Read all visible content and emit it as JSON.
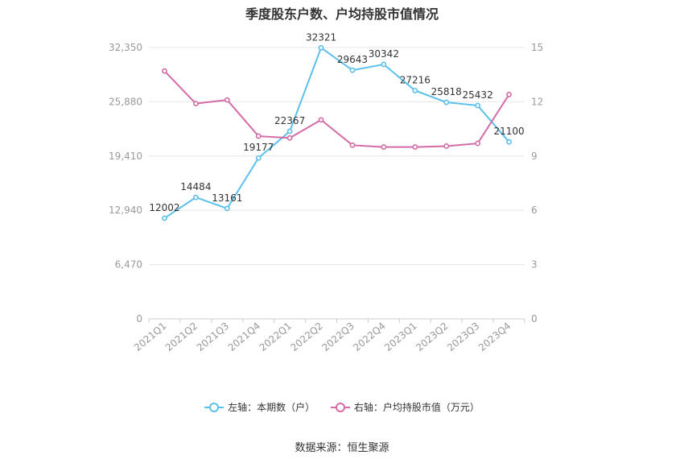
{
  "chart_data": {
    "type": "line",
    "title": "季度股东户数、户均持股市值情况",
    "categories": [
      "2021Q1",
      "2021Q2",
      "2021Q3",
      "2021Q4",
      "2022Q1",
      "2022Q2",
      "2022Q3",
      "2022Q4",
      "2023Q1",
      "2023Q2",
      "2023Q3",
      "2023Q4"
    ],
    "left_axis": {
      "ticks": [
        "0",
        "6,470",
        "12,940",
        "19,410",
        "25,880",
        "32,350"
      ],
      "ylim": [
        0,
        32350
      ]
    },
    "right_axis": {
      "ticks": [
        "0",
        "3",
        "6",
        "9",
        "12",
        "15"
      ],
      "ylim": [
        0,
        15
      ]
    },
    "grid": true,
    "legend_position": "bottom",
    "series": [
      {
        "name": "左轴：本期数（户）",
        "axis": "left",
        "color": "#5bc0eb",
        "values": [
          12002,
          14484,
          13161,
          19177,
          22367,
          32321,
          29643,
          30342,
          27216,
          25818,
          25432,
          21100
        ],
        "labels": [
          "12002",
          "14484",
          "13161",
          "19177",
          "22367",
          "32321",
          "29643",
          "30342",
          "27216",
          "25818",
          "25432",
          "21100"
        ]
      },
      {
        "name": "右轴：户均持股市值（万元）",
        "axis": "right",
        "color": "#d36ba6",
        "values": [
          13.7,
          11.9,
          12.1,
          10.1,
          10.0,
          11.0,
          9.6,
          9.5,
          9.5,
          9.55,
          9.7,
          12.4
        ]
      }
    ]
  },
  "source": "数据来源：恒生聚源"
}
